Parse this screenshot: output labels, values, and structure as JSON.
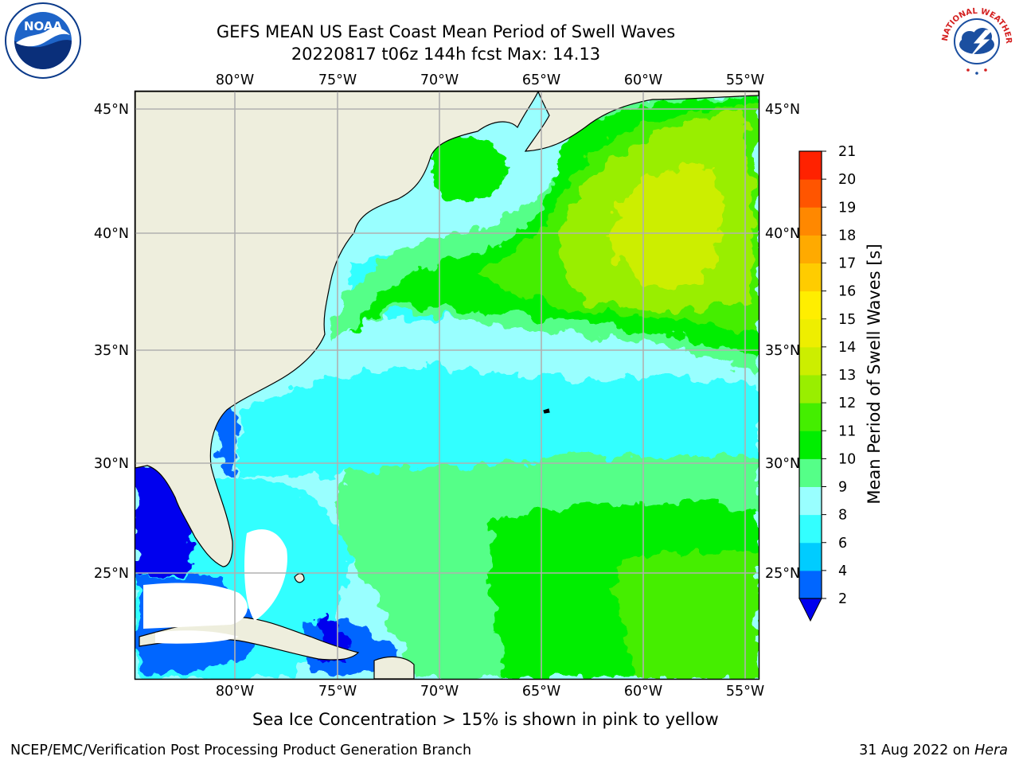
{
  "title": {
    "line1": "GEFS MEAN US East Coast Mean Period of Swell Waves",
    "line2": "20220817 t06z 144h fcst   Max: 14.13"
  },
  "map": {
    "lon_labels": [
      "80°W",
      "75°W",
      "70°W",
      "65°W",
      "60°W",
      "55°W"
    ],
    "lat_labels_left": [
      "45°N",
      "40°N",
      "35°N",
      "30°N",
      "25°N"
    ],
    "lat_labels_right": [
      "45°N",
      "40°N",
      "35°N",
      "30°N",
      "25°N"
    ],
    "land_color": "#eeeedd",
    "grid_color": "#b0b0b0"
  },
  "colorbar": {
    "label": "Mean Period of Swell Waves [s]",
    "ticks": [
      "2",
      "4",
      "6",
      "8",
      "9",
      "10",
      "11",
      "12",
      "13",
      "14",
      "15",
      "16",
      "17",
      "18",
      "19",
      "20",
      "21"
    ],
    "colors": [
      "#0066ff",
      "#00ccff",
      "#33ffff",
      "#99ffff",
      "#55ff88",
      "#00ee00",
      "#44ee00",
      "#99ee00",
      "#ccee00",
      "#eeee00",
      "#ffee00",
      "#ffcc00",
      "#ffaa00",
      "#ff8800",
      "#ff5500",
      "#ff2200"
    ],
    "under_color": "#0000ee"
  },
  "caption": "Sea Ice Concentration > 15% is shown in pink to yellow",
  "footer": {
    "left": "NCEP/EMC/Verification Post Processing Product Generation Branch",
    "date": "31 Aug 2022 on ",
    "host": "Hera"
  },
  "logos": {
    "noaa_text": "NOAA",
    "nws_text": "NATIONAL WEATHER SERVICE"
  }
}
